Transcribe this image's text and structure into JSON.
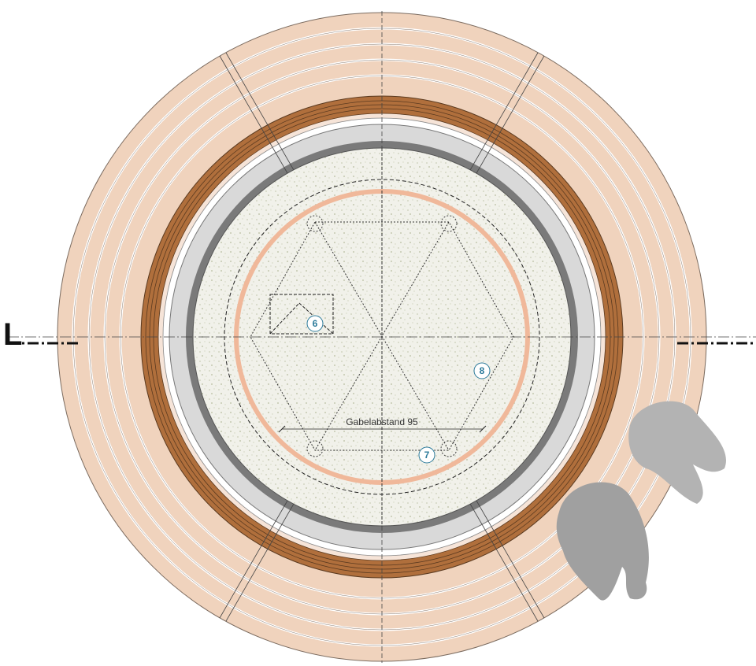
{
  "callouts": [
    {
      "label": "6"
    },
    {
      "label": "8"
    },
    {
      "label": "7"
    }
  ],
  "dimension": {
    "label": "Gabelabstand 95"
  },
  "section_marker": {
    "label": "L"
  }
}
